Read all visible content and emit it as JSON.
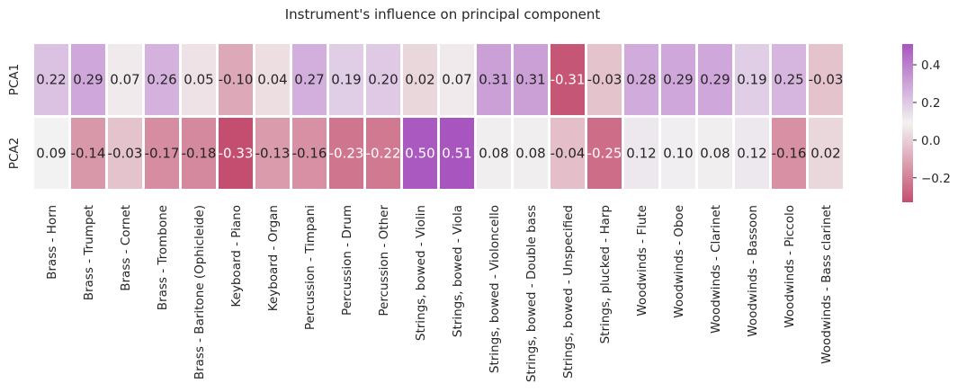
{
  "chart_data": {
    "type": "heatmap",
    "title": "Instrument's influence on principal component",
    "xlabel": "",
    "ylabel": "",
    "rows": [
      "PCA1",
      "PCA2"
    ],
    "columns": [
      "Brass - Horn",
      "Brass - Trumpet",
      "Brass - Cornet",
      "Brass - Trombone",
      "Brass - Baritone (Ophicleide)",
      "Keyboard - Piano",
      "Keyboard - Organ",
      "Percussion - Timpani",
      "Percussion - Drum",
      "Percussion - Other",
      "Strings, bowed - Violin",
      "Strings, bowed - Viola",
      "Strings, bowed - Violoncello",
      "Strings, bowed - Double bass",
      "Strings, bowed - Unspecified",
      "Strings, plucked - Harp",
      "Woodwinds - Flute",
      "Woodwinds - Oboe",
      "Woodwinds - Clarinet",
      "Woodwinds - Bassoon",
      "Woodwinds - Piccolo",
      "Woodwinds - Bass clarinet"
    ],
    "values": [
      [
        0.22,
        0.29,
        0.07,
        0.26,
        0.05,
        -0.1,
        0.04,
        0.27,
        0.19,
        0.2,
        0.02,
        0.07,
        0.31,
        0.31,
        -0.31,
        -0.03,
        0.28,
        0.29,
        0.29,
        0.19,
        0.25,
        -0.03
      ],
      [
        0.09,
        -0.14,
        -0.03,
        -0.17,
        -0.18,
        -0.33,
        -0.13,
        -0.16,
        -0.23,
        -0.22,
        0.5,
        0.51,
        0.08,
        0.08,
        -0.04,
        -0.25,
        0.12,
        0.1,
        0.08,
        0.12,
        -0.16,
        0.02
      ]
    ],
    "labels": [
      [
        "0.22",
        "0.29",
        "0.07",
        "0.26",
        "0.05",
        "-0.10",
        "0.04",
        "0.27",
        "0.19",
        "0.20",
        "0.02",
        "0.07",
        "0.31",
        "0.31",
        "-0.31",
        "-0.03",
        "0.28",
        "0.29",
        "0.29",
        "0.19",
        "0.25",
        "-0.03"
      ],
      [
        "0.09",
        "-0.14",
        "-0.03",
        "-0.17",
        "-0.18",
        "-0.33",
        "-0.13",
        "-0.16",
        "-0.23",
        "-0.22",
        "0.50",
        "0.51",
        "0.08",
        "0.08",
        "-0.04",
        "-0.25",
        "0.12",
        "0.10",
        "0.08",
        "0.12",
        "-0.16",
        "0.02"
      ]
    ],
    "colorbar": {
      "vmin": -0.33,
      "vmax": 0.51,
      "ticks": [
        -0.2,
        0.0,
        0.2,
        0.4
      ],
      "tick_labels": [
        "−0.2",
        "0.0",
        "0.2",
        "0.4"
      ],
      "colors": {
        "low": "#c44e6f",
        "mid": "#f2f2f2",
        "high": "#a855bf"
      }
    },
    "grid": false,
    "legend": "colorbar-right"
  }
}
